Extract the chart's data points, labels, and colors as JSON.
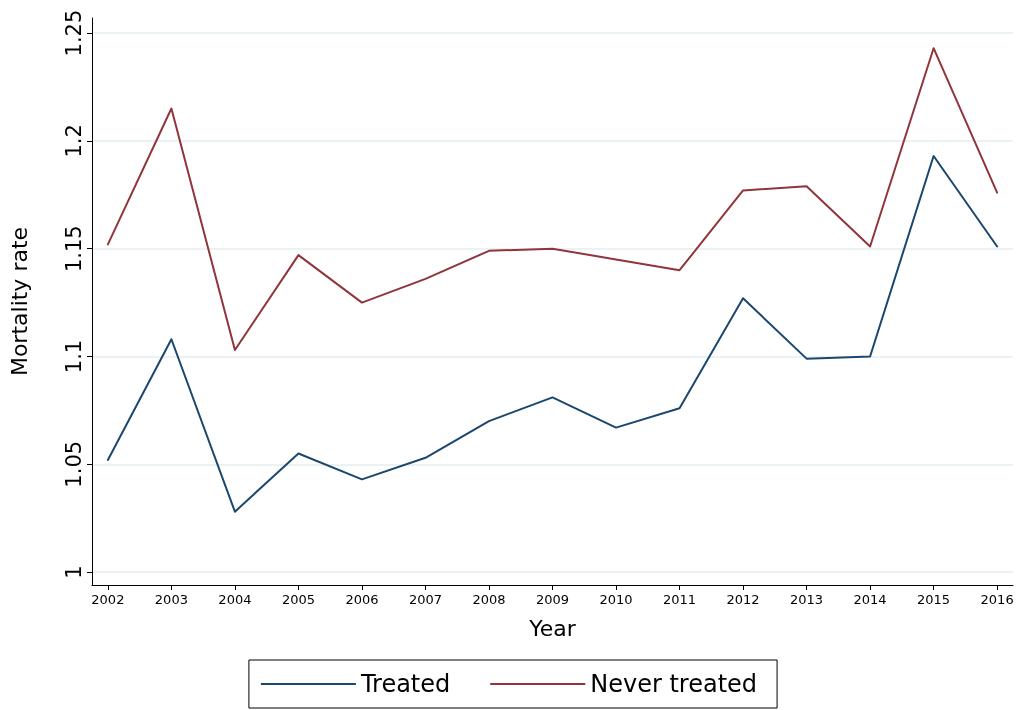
{
  "chart_data": {
    "type": "line",
    "xlabel": "Year",
    "ylabel": "Mortality rate",
    "x": [
      2002,
      2003,
      2004,
      2005,
      2006,
      2007,
      2008,
      2009,
      2010,
      2011,
      2012,
      2013,
      2014,
      2015,
      2016
    ],
    "series": [
      {
        "name": "Treated",
        "color": "#1a476f",
        "values": [
          1.052,
          1.108,
          1.028,
          1.055,
          1.043,
          1.053,
          1.07,
          1.081,
          1.067,
          1.076,
          1.127,
          1.099,
          1.1,
          1.193,
          1.151
        ]
      },
      {
        "name": "Never treated",
        "color": "#90353b",
        "values": [
          1.152,
          1.215,
          1.103,
          1.147,
          1.125,
          1.136,
          1.149,
          1.15,
          1.145,
          1.14,
          1.177,
          1.179,
          1.151,
          1.243,
          1.176
        ]
      }
    ],
    "xlim": [
      2001.75,
      2016.25
    ],
    "xticks": [
      2002,
      2003,
      2004,
      2005,
      2006,
      2007,
      2008,
      2009,
      2010,
      2011,
      2012,
      2013,
      2014,
      2015,
      2016
    ],
    "ylim": [
      0.994,
      1.257
    ],
    "yticks": [
      1,
      1.05,
      1.1,
      1.15,
      1.2,
      1.25
    ],
    "grid": "y",
    "legend": "bottom",
    "marker": "none",
    "line_style": "solid"
  }
}
